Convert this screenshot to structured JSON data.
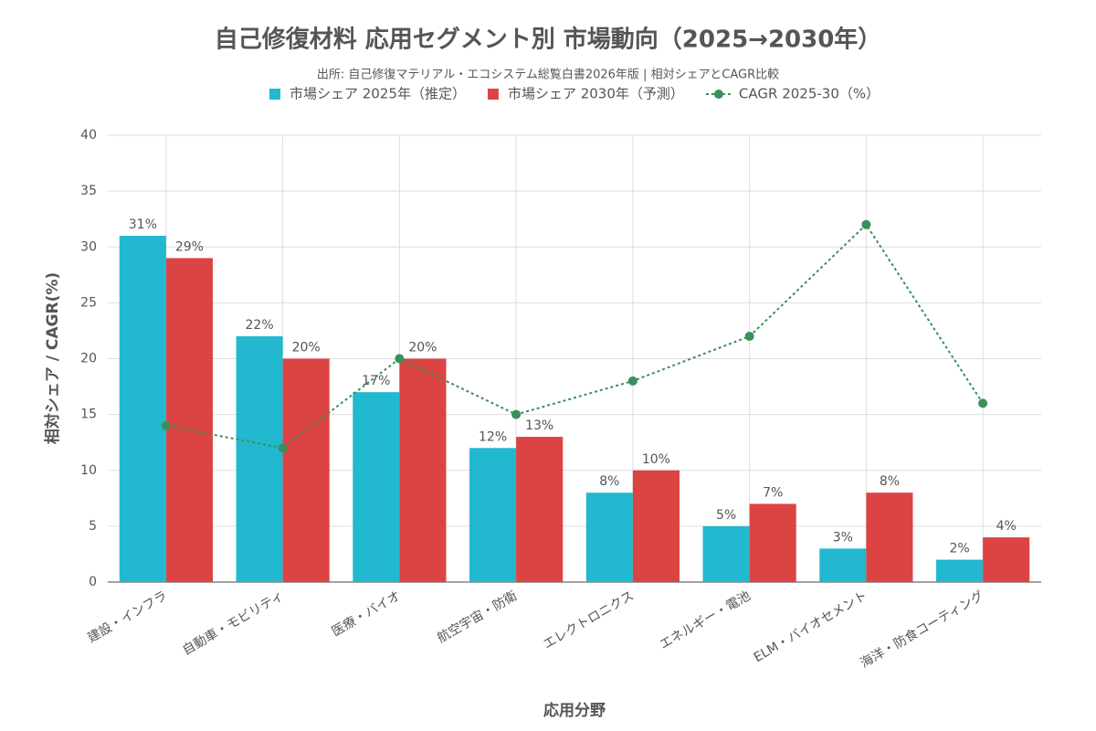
{
  "chart_data": {
    "type": "bar_line",
    "title": "自己修復材料 応用セグメント別 市場動向（2025→2030年）",
    "subtitle": "出所: 自己修復マテリアル・エコシステム総覧白書2026年版 | 相対シェアとCAGR比較",
    "x_label": "応用分野",
    "y_label": "相対シェア / CAGR(%)",
    "categories": [
      "建設・インフラ",
      "自動車・モビリティ",
      "医療・バイオ",
      "航空宇宙・防衛",
      "エレクトロニクス",
      "エネルギー・電池",
      "ELM・バイオセメント",
      "海洋・防食コーティング"
    ],
    "series": [
      {
        "name": "市場シェア 2025年（推定）",
        "type": "bar",
        "color": "#22b8cf",
        "values": [
          31,
          22,
          17,
          12,
          8,
          5,
          3,
          2
        ],
        "value_labels": [
          "31%",
          "22%",
          "17%",
          "12%",
          "8%",
          "5%",
          "3%",
          "2%"
        ]
      },
      {
        "name": "市場シェア 2030年（予測）",
        "type": "bar",
        "color": "#dc4444",
        "values": [
          29,
          20,
          20,
          13,
          10,
          7,
          8,
          4
        ],
        "value_labels": [
          "29%",
          "20%",
          "20%",
          "13%",
          "10%",
          "7%",
          "8%",
          "4%"
        ]
      },
      {
        "name": "CAGR 2025-30（%）",
        "type": "line",
        "color": "#3a8f5a",
        "values": [
          14,
          12,
          20,
          15,
          18,
          22,
          32,
          16
        ]
      }
    ],
    "ylim": [
      0,
      40
    ],
    "yticks": [
      0,
      5,
      10,
      15,
      20,
      25,
      30,
      35,
      40
    ],
    "grid": true
  }
}
